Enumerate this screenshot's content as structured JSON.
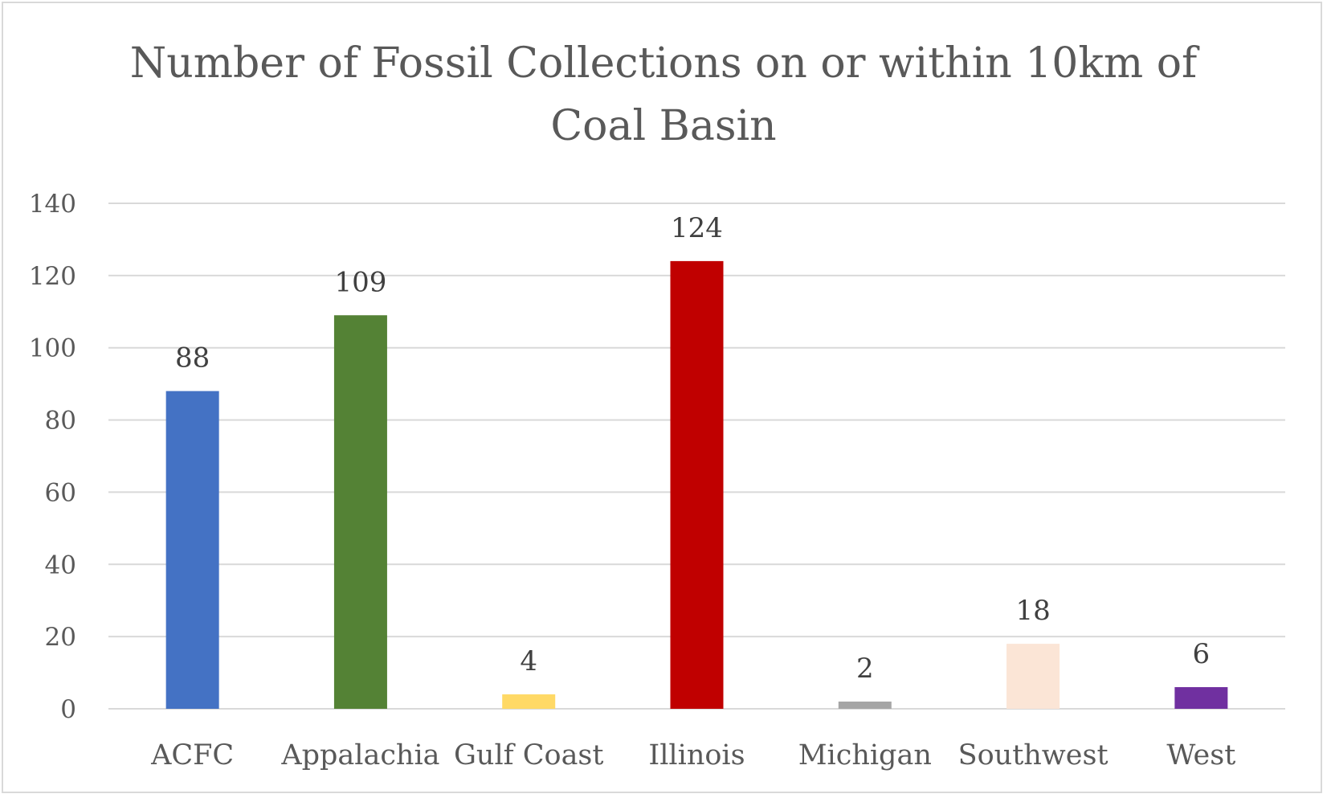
{
  "chart_data": {
    "type": "bar",
    "title": "Number of Fossil Collections on or within 10km of Coal Basin",
    "title_lines": [
      "Number of Fossil Collections on or within 10km of",
      "Coal Basin"
    ],
    "xlabel": "",
    "ylabel": "",
    "categories": [
      "ACFC",
      "Appalachia",
      "Gulf Coast",
      "Illinois",
      "Michigan",
      "Southwest",
      "West"
    ],
    "values": [
      88,
      109,
      4,
      124,
      2,
      18,
      6
    ],
    "bar_colors": [
      "#4472c4",
      "#548235",
      "#ffd966",
      "#c00000",
      "#a5a5a5",
      "#fbe5d6",
      "#7030a0"
    ],
    "ylim": [
      0,
      140
    ],
    "yticks": [
      0,
      20,
      40,
      60,
      80,
      100,
      120,
      140
    ],
    "grid": true,
    "gridline_color": "#d9d9d9",
    "legend": "none",
    "data_labels": true
  }
}
